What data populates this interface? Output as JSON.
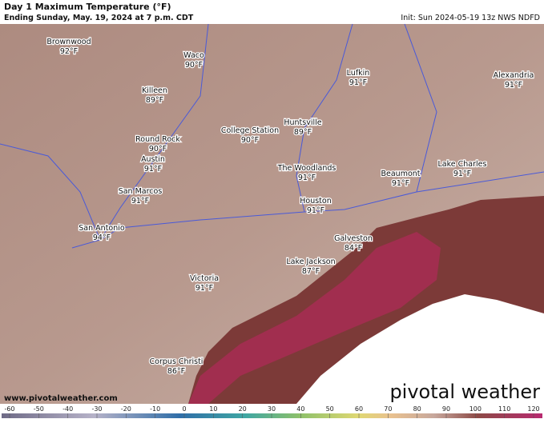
{
  "header": {
    "title": "Day 1 Maximum Temperature (°F)",
    "subtitle": "Ending Sunday, May. 19, 2024 at 7 p.m. CDT",
    "init": "Init: Sun 2024-05-19 13z NWS NDFD"
  },
  "cities": [
    {
      "name": "Brownwood",
      "temp": "92°F"
    },
    {
      "name": "Waco",
      "temp": "90°F"
    },
    {
      "name": "Killeen",
      "temp": "89°F"
    },
    {
      "name": "Round Rock",
      "temp": "90°F"
    },
    {
      "name": "Austin",
      "temp": "91°F"
    },
    {
      "name": "College Station",
      "temp": "90°F"
    },
    {
      "name": "Huntsville",
      "temp": "89°F"
    },
    {
      "name": "Lufkin",
      "temp": "91°F"
    },
    {
      "name": "Alexandria",
      "temp": "91°F"
    },
    {
      "name": "The Woodlands",
      "temp": "91°F"
    },
    {
      "name": "Beaumont",
      "temp": "91°F"
    },
    {
      "name": "Lake Charles",
      "temp": "91°F"
    },
    {
      "name": "San Marcos",
      "temp": "91°F"
    },
    {
      "name": "Houston",
      "temp": "91°F"
    },
    {
      "name": "San Antonio",
      "temp": "94°F"
    },
    {
      "name": "Galveston",
      "temp": "84°F"
    },
    {
      "name": "Lake Jackson",
      "temp": "87°F"
    },
    {
      "name": "Victoria",
      "temp": "91°F"
    },
    {
      "name": "Corpus Christi",
      "temp": "86°F"
    }
  ],
  "website": "www.pivotalweather.com",
  "logo": "pivotal weather",
  "colorbar": {
    "ticks": [
      -60,
      -50,
      -40,
      -30,
      -20,
      -10,
      0,
      10,
      20,
      30,
      40,
      50,
      60,
      70,
      80,
      90,
      100,
      110,
      120
    ]
  }
}
